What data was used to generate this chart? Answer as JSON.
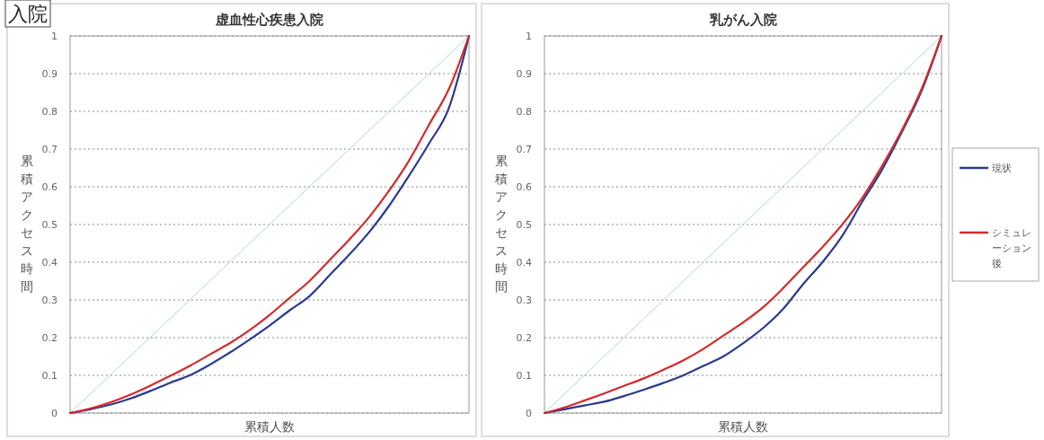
{
  "chart_data": [
    {
      "type": "line",
      "title": "虚血性心疾患入院",
      "xlabel": "累積人数",
      "ylabel": "累積アクセス時間",
      "annotations": [
        "入院"
      ],
      "categories": [
        null,
        null,
        null,
        null,
        null,
        null,
        null,
        null,
        null,
        null,
        null,
        null,
        null,
        null,
        null,
        null,
        null,
        null,
        null,
        null,
        null
      ],
      "series": [
        {
          "color": "#a8dcd8",
          "values": [
            0,
            0.05,
            0.1,
            0.15,
            0.2,
            0.25,
            0.3,
            0.35,
            0.4,
            0.45,
            0.5,
            0.55,
            0.6,
            0.65,
            0.7,
            0.75,
            0.8,
            0.85,
            0.9,
            0.95,
            1
          ]
        },
        {
          "color": "#2b3a8f",
          "values": [
            0,
            0.01,
            0.022,
            0.038,
            0.058,
            0.08,
            0.1,
            0.128,
            0.16,
            0.195,
            0.232,
            0.272,
            0.31,
            0.365,
            0.42,
            0.48,
            0.55,
            0.63,
            0.715,
            0.81,
            1
          ]
        },
        {
          "color": "#d42a2a",
          "values": [
            0,
            0.012,
            0.028,
            0.048,
            0.072,
            0.098,
            0.125,
            0.155,
            0.185,
            0.22,
            0.26,
            0.305,
            0.35,
            0.405,
            0.46,
            0.52,
            0.59,
            0.67,
            0.765,
            0.86,
            1
          ]
        }
      ],
      "ylim": [
        0,
        1
      ],
      "yticks": [
        0,
        0.1,
        0.2,
        0.3,
        0.4,
        0.5,
        0.6,
        0.7,
        0.8,
        0.9,
        1
      ],
      "grid": "y",
      "legend": false,
      "tick_labels": "y"
    },
    {
      "type": "line",
      "title": "乳がん入院",
      "xlabel": "累積人数",
      "ylabel": "累積アクセス時間",
      "categories": [
        null,
        null,
        null,
        null,
        null,
        null,
        null,
        null,
        null,
        null,
        null,
        null,
        null,
        null,
        null,
        null,
        null,
        null,
        null,
        null,
        null
      ],
      "series": [
        {
          "color": "#a8dcd8",
          "values": [
            0,
            0.05,
            0.1,
            0.15,
            0.2,
            0.25,
            0.3,
            0.35,
            0.4,
            0.45,
            0.5,
            0.55,
            0.6,
            0.65,
            0.7,
            0.75,
            0.8,
            0.85,
            0.9,
            0.95,
            1
          ]
        },
        {
          "name": "現状",
          "color": "#2b3a8f",
          "values": [
            0,
            0.01,
            0.02,
            0.03,
            0.045,
            0.062,
            0.08,
            0.1,
            0.125,
            0.15,
            0.185,
            0.225,
            0.275,
            0.34,
            0.4,
            0.47,
            0.56,
            0.645,
            0.745,
            0.855,
            1
          ]
        },
        {
          "name": "シミュレーション後",
          "color": "#d42a2a",
          "values": [
            0,
            0.015,
            0.033,
            0.052,
            0.072,
            0.092,
            0.115,
            0.14,
            0.17,
            0.205,
            0.24,
            0.28,
            0.33,
            0.385,
            0.44,
            0.5,
            0.57,
            0.655,
            0.75,
            0.86,
            1
          ]
        }
      ],
      "ylim": [
        0,
        1
      ],
      "yticks": [
        0,
        0.1,
        0.2,
        0.3,
        0.4,
        0.5,
        0.6,
        0.7,
        0.8,
        0.9,
        1
      ],
      "grid": "y",
      "legend": "right",
      "tick_labels": "y"
    }
  ]
}
